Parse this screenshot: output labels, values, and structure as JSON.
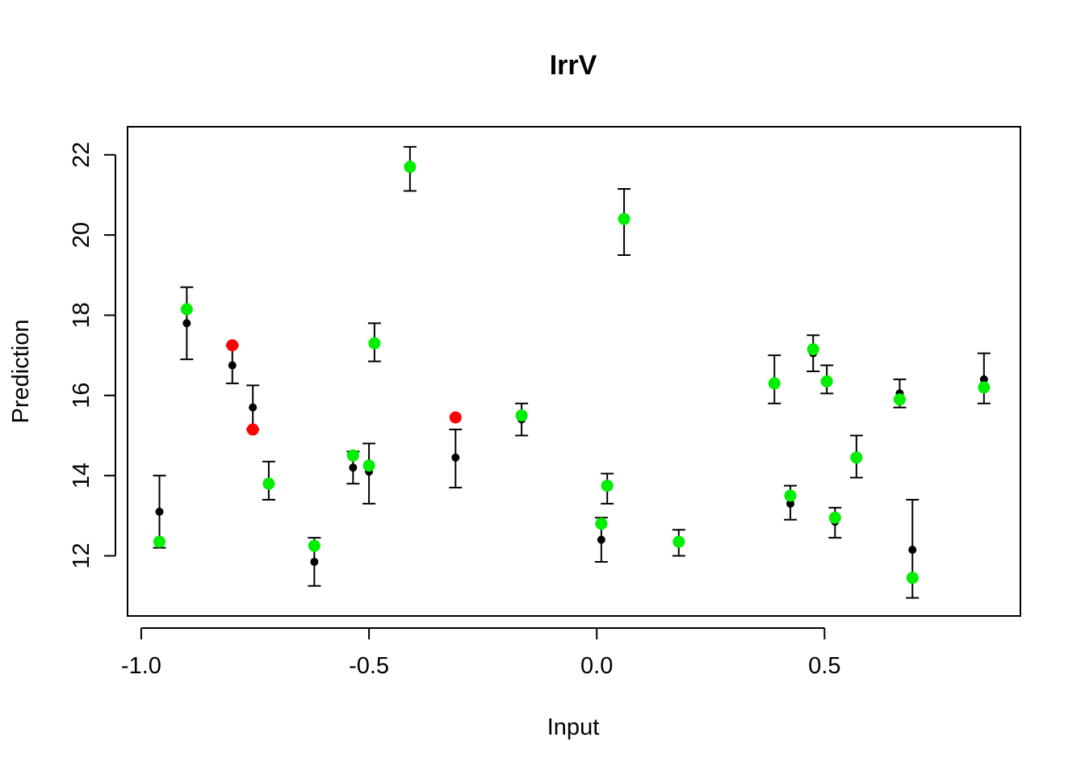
{
  "chart_data": {
    "type": "scatter",
    "title": "IrrV",
    "xlabel": "Input",
    "ylabel": "Prediction",
    "xlim": [
      -1.03,
      0.93
    ],
    "ylim": [
      10.5,
      22.7
    ],
    "xticks": [
      -1.0,
      -0.5,
      0.0,
      0.5
    ],
    "xtick_labels": [
      "-1.0",
      "-0.5",
      "0.0",
      "0.5"
    ],
    "yticks": [
      12,
      14,
      16,
      18,
      20,
      22
    ],
    "ytick_labels": [
      "12",
      "14",
      "16",
      "18",
      "20",
      "22"
    ],
    "grid": false,
    "legend": "none",
    "colors": {
      "prediction": "#000000",
      "observed_in": "#00ee00",
      "observed_out": "#ff0000"
    },
    "points": [
      {
        "x": -0.96,
        "pred": 13.1,
        "lo": 12.2,
        "hi": 14.0,
        "obs": 12.35,
        "inside": true
      },
      {
        "x": -0.9,
        "pred": 17.8,
        "lo": 16.9,
        "hi": 18.7,
        "obs": 18.15,
        "inside": true
      },
      {
        "x": -0.8,
        "pred": 16.75,
        "lo": 16.3,
        "hi": 17.25,
        "obs": 17.25,
        "inside": false
      },
      {
        "x": -0.755,
        "pred": 15.7,
        "lo": 15.15,
        "hi": 16.25,
        "obs": 15.15,
        "inside": false
      },
      {
        "x": -0.72,
        "pred": 13.85,
        "lo": 13.4,
        "hi": 14.35,
        "obs": 13.8,
        "inside": true
      },
      {
        "x": -0.62,
        "pred": 11.85,
        "lo": 11.25,
        "hi": 12.45,
        "obs": 12.25,
        "inside": true
      },
      {
        "x": -0.535,
        "pred": 14.2,
        "lo": 13.8,
        "hi": 14.6,
        "obs": 14.5,
        "inside": true
      },
      {
        "x": -0.5,
        "pred": 14.1,
        "lo": 13.3,
        "hi": 14.8,
        "obs": 14.25,
        "inside": true
      },
      {
        "x": -0.488,
        "pred": 17.3,
        "lo": 16.85,
        "hi": 17.8,
        "obs": 17.3,
        "inside": true
      },
      {
        "x": -0.41,
        "pred": 21.65,
        "lo": 21.1,
        "hi": 22.2,
        "obs": 21.7,
        "inside": true
      },
      {
        "x": -0.31,
        "pred": 14.45,
        "lo": 13.7,
        "hi": 15.15,
        "obs": 15.45,
        "inside": false
      },
      {
        "x": -0.165,
        "pred": 15.4,
        "lo": 15.0,
        "hi": 15.8,
        "obs": 15.5,
        "inside": true
      },
      {
        "x": 0.01,
        "pred": 12.4,
        "lo": 11.85,
        "hi": 12.95,
        "obs": 12.8,
        "inside": true
      },
      {
        "x": 0.023,
        "pred": 13.7,
        "lo": 13.3,
        "hi": 14.05,
        "obs": 13.75,
        "inside": true
      },
      {
        "x": 0.06,
        "pred": 20.4,
        "lo": 19.5,
        "hi": 21.15,
        "obs": 20.4,
        "inside": true
      },
      {
        "x": 0.18,
        "pred": 12.3,
        "lo": 12.0,
        "hi": 12.65,
        "obs": 12.35,
        "inside": true
      },
      {
        "x": 0.39,
        "pred": 16.35,
        "lo": 15.8,
        "hi": 17.0,
        "obs": 16.3,
        "inside": true
      },
      {
        "x": 0.425,
        "pred": 13.3,
        "lo": 12.9,
        "hi": 13.75,
        "obs": 13.5,
        "inside": true
      },
      {
        "x": 0.475,
        "pred": 17.05,
        "lo": 16.6,
        "hi": 17.5,
        "obs": 17.15,
        "inside": true
      },
      {
        "x": 0.505,
        "pred": 16.35,
        "lo": 16.05,
        "hi": 16.75,
        "obs": 16.35,
        "inside": true
      },
      {
        "x": 0.523,
        "pred": 12.85,
        "lo": 12.45,
        "hi": 13.2,
        "obs": 12.95,
        "inside": true
      },
      {
        "x": 0.57,
        "pred": 14.4,
        "lo": 13.95,
        "hi": 15.0,
        "obs": 14.45,
        "inside": true
      },
      {
        "x": 0.665,
        "pred": 16.05,
        "lo": 15.7,
        "hi": 16.4,
        "obs": 15.9,
        "inside": true
      },
      {
        "x": 0.693,
        "pred": 12.15,
        "lo": 10.95,
        "hi": 13.4,
        "obs": 11.45,
        "inside": true
      },
      {
        "x": 0.85,
        "pred": 16.4,
        "lo": 15.8,
        "hi": 17.05,
        "obs": 16.2,
        "inside": true
      }
    ]
  }
}
